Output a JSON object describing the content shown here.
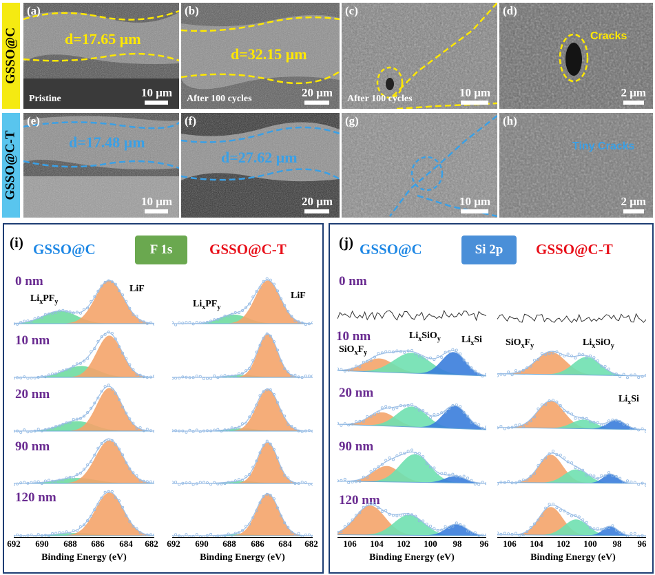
{
  "colors": {
    "yellow": "#f5ea12",
    "blue_label": "#59c5ee",
    "dash_yellow": "#ffe800",
    "dash_blue": "#3aa0e6",
    "lif": "#f4a46a",
    "lipf": "#6fdca0",
    "siox": "#f4a46a",
    "lisio": "#6fe0b0",
    "lisi": "#3a7ddb"
  },
  "row_labels": {
    "top": "GSSO@C",
    "bottom": "GSSO@C-T"
  },
  "sem_panels": [
    {
      "letter": "(a)",
      "caption": "Pristine",
      "scale": "10 μm",
      "dim": "d=17.65 μm"
    },
    {
      "letter": "(b)",
      "caption": "After 100 cycles",
      "scale": "20 μm",
      "dim": "d=32.15 μm"
    },
    {
      "letter": "(c)",
      "caption": "After 100 cycles",
      "scale": "10 μm"
    },
    {
      "letter": "(d)",
      "scale": "2 μm",
      "annotation": "Cracks"
    },
    {
      "letter": "(e)",
      "scale": "10 μm",
      "dim": "d=17.48 μm"
    },
    {
      "letter": "(f)",
      "scale": "20 μm",
      "dim": "d=27.62 μm"
    },
    {
      "letter": "(g)",
      "scale": "10 μm"
    },
    {
      "letter": "(h)",
      "scale": "2 μm",
      "annotation": "Tiny Cracks"
    }
  ],
  "panel_i": {
    "label": "(i)",
    "left_title": "GSSO@C",
    "badge": "F 1s",
    "right_title": "GSSO@C-T",
    "depths": [
      "0 nm",
      "10 nm",
      "20 nm",
      "90 nm",
      "120 nm"
    ],
    "peak_labels": {
      "lipf": "LixPFy",
      "lif": "LiF"
    },
    "xticks": [
      "692",
      "690",
      "688",
      "686",
      "684",
      "682"
    ],
    "xlabel": "Binding Energy (eV)"
  },
  "panel_j": {
    "label": "(j)",
    "left_title": "GSSO@C",
    "badge": "Si 2p",
    "right_title": "GSSO@C-T",
    "depths": [
      "0 nm",
      "10 nm",
      "20 nm",
      "90 nm",
      "120 nm"
    ],
    "peak_labels": {
      "siox": "SiOxFy",
      "lisio": "LixSiOy",
      "lisi": "LixSi"
    },
    "xticks": [
      "106",
      "104",
      "102",
      "100",
      "98",
      "96"
    ],
    "xlabel": "Binding Energy (eV)"
  }
}
